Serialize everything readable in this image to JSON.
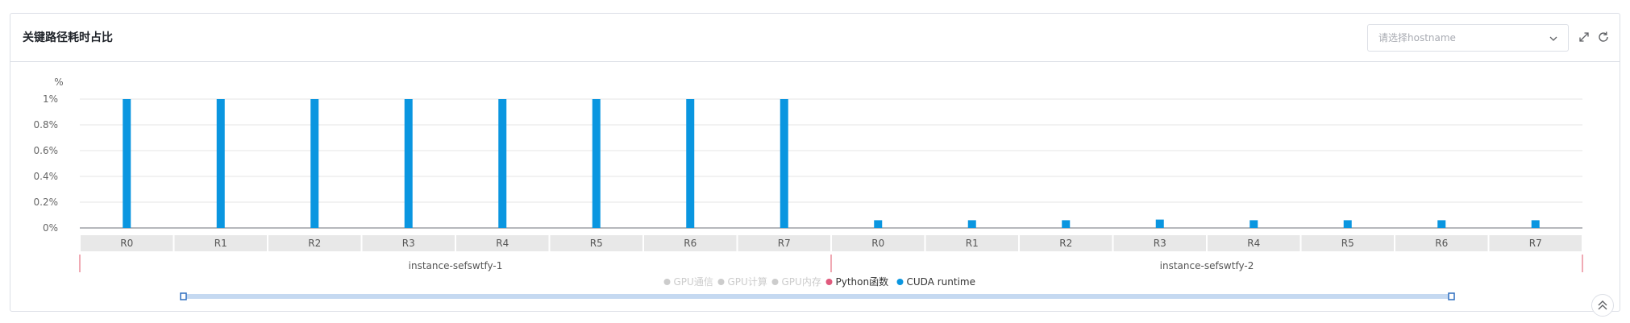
{
  "panel": {
    "title": "关键路径耗时占比",
    "hostname_select": {
      "placeholder": "请选择hostname",
      "value": ""
    },
    "icons": [
      "chevron-down-icon",
      "expand-icon",
      "refresh-icon",
      "scroll-top-icon"
    ]
  },
  "colors": {
    "bar": "#0a96e0",
    "axis": "#666666",
    "grid": "#e6e6e6",
    "legend_inactive": "#cccccc",
    "python": "#e05a7d",
    "cuda": "#0a96e0",
    "group_line": "#e0556a",
    "category_bg": "#e8e8e8",
    "zoom_bar": "#c5d9f1",
    "zoom_handle": "#2f6fbf"
  },
  "chart_data": {
    "type": "bar",
    "y_unit_label": "%",
    "ylim": [
      0,
      1
    ],
    "y_ticks": [
      "0%",
      "0.2%",
      "0.4%",
      "0.6%",
      "0.8%",
      "1%"
    ],
    "categories": [
      "R0",
      "R1",
      "R2",
      "R3",
      "R4",
      "R5",
      "R6",
      "R7",
      "R0",
      "R1",
      "R2",
      "R3",
      "R4",
      "R5",
      "R6",
      "R7"
    ],
    "groups": [
      {
        "label": "instance-sefswtfy-1",
        "span": 8
      },
      {
        "label": "instance-sefswtfy-2",
        "span": 8
      }
    ],
    "series": [
      {
        "name": "CUDA runtime",
        "values": [
          1,
          1,
          1,
          1,
          1,
          1,
          1,
          1,
          0.06,
          0.06,
          0.06,
          0.065,
          0.06,
          0.06,
          0.06,
          0.06
        ]
      }
    ],
    "legend": [
      {
        "label": "GPU通信",
        "active": false
      },
      {
        "label": "GPU计算",
        "active": false
      },
      {
        "label": "GPU内存",
        "active": false
      },
      {
        "label": "Python函数",
        "active": true,
        "color": "#e05a7d"
      },
      {
        "label": "CUDA runtime",
        "active": true,
        "color": "#0a96e0"
      }
    ],
    "grid": true,
    "legend_position": "bottom",
    "datazoom_range_percent": [
      0,
      100
    ]
  }
}
